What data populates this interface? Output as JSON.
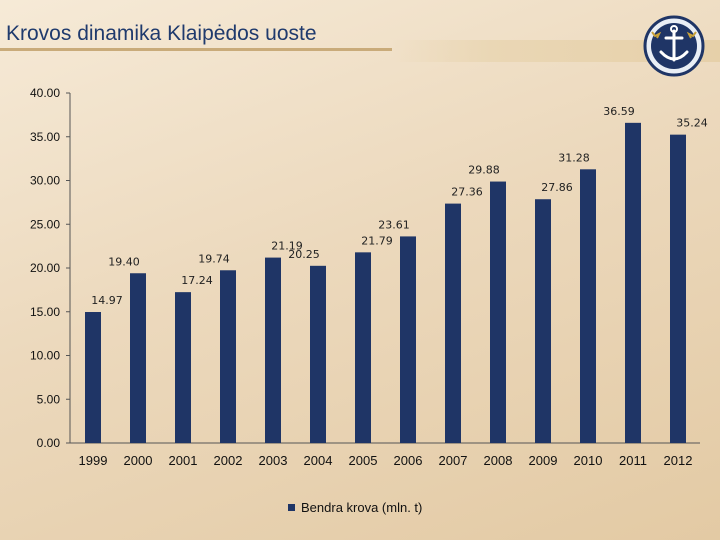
{
  "header": {
    "title": "Krovos dinamika Klaipėdos uoste",
    "logo_icon": "port-anchor-emblem-icon"
  },
  "colors": {
    "bar": "#1f3566",
    "title": "#1f3a6d",
    "axis": "#555555"
  },
  "chart_data": {
    "type": "bar",
    "title": "",
    "xlabel": "",
    "ylabel": "",
    "ylim": [
      0,
      40
    ],
    "yticks": [
      "0.00",
      "5.00",
      "10.00",
      "15.00",
      "20.00",
      "25.00",
      "30.00",
      "35.00",
      "40.00"
    ],
    "grid": false,
    "legend_position": "bottom",
    "categories": [
      "1999",
      "2000",
      "2001",
      "2002",
      "2003",
      "2004",
      "2005",
      "2006",
      "2007",
      "2008",
      "2009",
      "2010",
      "2011",
      "2012"
    ],
    "series": [
      {
        "name": "Bendra krova (mln. t)",
        "values": [
          14.97,
          19.4,
          17.24,
          19.74,
          21.19,
          20.25,
          21.79,
          23.61,
          27.36,
          29.88,
          27.86,
          31.28,
          36.59,
          35.24
        ],
        "labels": [
          "14.97",
          "19.40",
          "17.24",
          "19.74",
          "21.19",
          "20.25",
          "21.79",
          "23.61",
          "27.36",
          "29.88",
          "27.86",
          "31.28",
          "36.59",
          "35.24"
        ]
      }
    ]
  }
}
